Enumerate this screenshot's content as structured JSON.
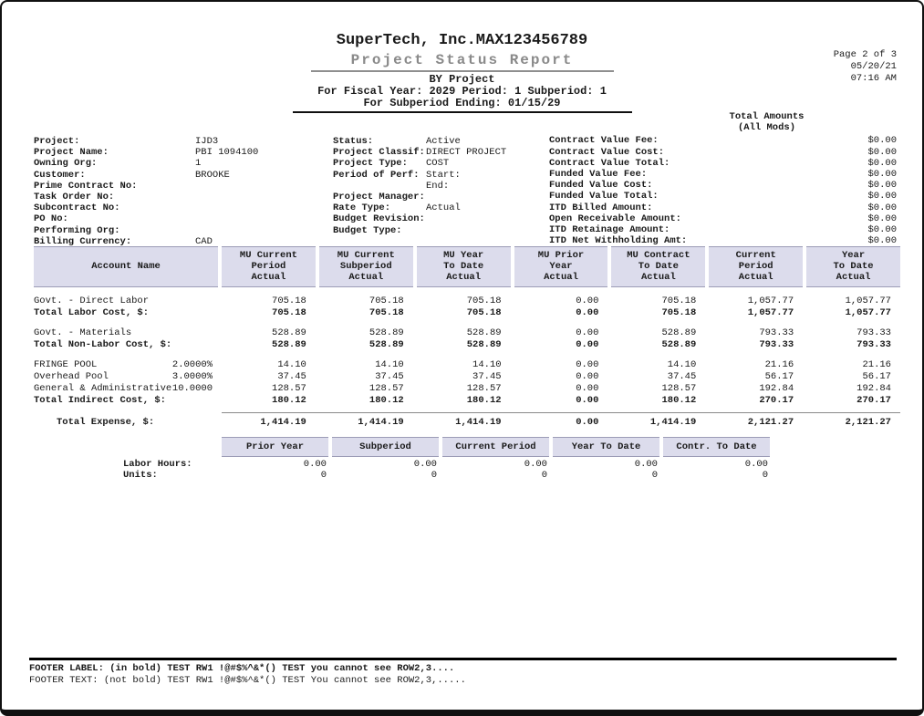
{
  "page_info": {
    "page": "Page 2 of 3",
    "date": "05/20/21",
    "time": "07:16 AM"
  },
  "header": {
    "company": "SuperTech, Inc.MAX123456789",
    "title": "Project Status Report",
    "report_by": "BY Project",
    "fiscal_line": "For Fiscal Year: 2029 Period: 1 Subperiod: 1",
    "ending_line": "For Subperiod Ending: 01/15/29"
  },
  "project_info": {
    "left": [
      {
        "label": "Project:",
        "value": "IJD3"
      },
      {
        "label": "Project Name:",
        "value": "PBI 1094100"
      },
      {
        "label": "Owning Org:",
        "value": "1"
      },
      {
        "label": "Customer:",
        "value": "BROOKE"
      },
      {
        "label": "Prime Contract No:",
        "value": ""
      },
      {
        "label": "Task Order No:",
        "value": ""
      },
      {
        "label": "Subcontract No:",
        "value": ""
      },
      {
        "label": "PO No:",
        "value": ""
      },
      {
        "label": "Performing Org:",
        "value": ""
      },
      {
        "label": "Billing Currency:",
        "value": "CAD"
      }
    ],
    "middle": [
      {
        "label": "Status:",
        "value": "Active"
      },
      {
        "label": "Project Classif:",
        "value": "DIRECT PROJECT"
      },
      {
        "label": "Project Type:",
        "value": "COST"
      },
      {
        "label": "Period of Perf:",
        "value": "Start:"
      },
      {
        "label": "",
        "value": "End:"
      },
      {
        "label": "Project Manager:",
        "value": ""
      },
      {
        "label": "Rate Type:",
        "value": "Actual"
      },
      {
        "label": "Budget Revision:",
        "value": ""
      },
      {
        "label": "Budget Type:",
        "value": ""
      }
    ],
    "totals_header": [
      "Total Amounts",
      "(All Mods)"
    ],
    "right": [
      {
        "label": "Contract Value Fee:",
        "value": "$0.00"
      },
      {
        "label": "Contract Value Cost:",
        "value": "$0.00"
      },
      {
        "label": "Contract Value Total:",
        "value": "$0.00"
      },
      {
        "label": "Funded Value Fee:",
        "value": "$0.00"
      },
      {
        "label": "Funded Value Cost:",
        "value": "$0.00"
      },
      {
        "label": "Funded Value Total:",
        "value": "$0.00"
      },
      {
        "label": "ITD Billed Amount:",
        "value": "$0.00"
      },
      {
        "label": "Open Receivable Amount:",
        "value": "$0.00"
      },
      {
        "label": "ITD Retainage Amount:",
        "value": "$0.00"
      },
      {
        "label": "ITD Net Withholding Amt:",
        "value": "$0.00"
      }
    ]
  },
  "main_table": {
    "columns": [
      "Account Name",
      "MU Current\nPeriod\nActual",
      "MU Current\nSubperiod\nActual",
      "MU Year\nTo Date\nActual",
      "MU Prior\nYear\nActual",
      "MU Contract\nTo Date\nActual",
      "Current\nPeriod\nActual",
      "Year\nTo Date\nActual"
    ],
    "rows": [
      {
        "type": "row",
        "name": "Govt. - Direct Labor",
        "rate": "",
        "values": [
          "705.18",
          "705.18",
          "705.18",
          "0.00",
          "705.18",
          "1,057.77",
          "1,057.77"
        ]
      },
      {
        "type": "total",
        "name": "Total Labor Cost, $:",
        "rate": "",
        "values": [
          "705.18",
          "705.18",
          "705.18",
          "0.00",
          "705.18",
          "1,057.77",
          "1,057.77"
        ]
      },
      {
        "type": "gap"
      },
      {
        "type": "row",
        "name": "Govt. - Materials",
        "rate": "",
        "values": [
          "528.89",
          "528.89",
          "528.89",
          "0.00",
          "528.89",
          "793.33",
          "793.33"
        ]
      },
      {
        "type": "total",
        "name": "Total Non-Labor Cost, $:",
        "rate": "",
        "values": [
          "528.89",
          "528.89",
          "528.89",
          "0.00",
          "528.89",
          "793.33",
          "793.33"
        ]
      },
      {
        "type": "gap"
      },
      {
        "type": "row",
        "name": "FRINGE POOL",
        "rate": "2.0000%",
        "values": [
          "14.10",
          "14.10",
          "14.10",
          "0.00",
          "14.10",
          "21.16",
          "21.16"
        ]
      },
      {
        "type": "row",
        "name": "Overhead Pool",
        "rate": "3.0000%",
        "values": [
          "37.45",
          "37.45",
          "37.45",
          "0.00",
          "37.45",
          "56.17",
          "56.17"
        ]
      },
      {
        "type": "row",
        "name": "General & Administrative",
        "rate": "10.0000",
        "values": [
          "128.57",
          "128.57",
          "128.57",
          "0.00",
          "128.57",
          "192.84",
          "192.84"
        ]
      },
      {
        "type": "total",
        "name": "Total Indirect Cost, $:",
        "rate": "",
        "values": [
          "180.12",
          "180.12",
          "180.12",
          "0.00",
          "180.12",
          "270.17",
          "270.17"
        ]
      },
      {
        "type": "grand",
        "name": "Total Expense, $:",
        "rate": "",
        "values": [
          "1,414.19",
          "1,414.19",
          "1,414.19",
          "0.00",
          "1,414.19",
          "2,121.27",
          "2,121.27"
        ]
      }
    ]
  },
  "hours_table": {
    "columns": [
      "Prior Year",
      "Subperiod",
      "Current Period",
      "Year To Date",
      "Contr. To Date"
    ],
    "rows": [
      {
        "label": "Labor Hours:",
        "values": [
          "0.00",
          "0.00",
          "0.00",
          "0.00",
          "0.00"
        ]
      },
      {
        "label": "Units:",
        "values": [
          "0",
          "0",
          "0",
          "0",
          "0"
        ]
      }
    ]
  },
  "footer": {
    "label_line": "FOOTER LABEL: (in bold) TEST RW1 !@#$%^&*() TEST you cannot see ROW2,3....",
    "text_line": "FOOTER TEXT: (not bold) TEST RW1 !@#$%^&*() TEST You cannot see ROW2,3,....."
  }
}
